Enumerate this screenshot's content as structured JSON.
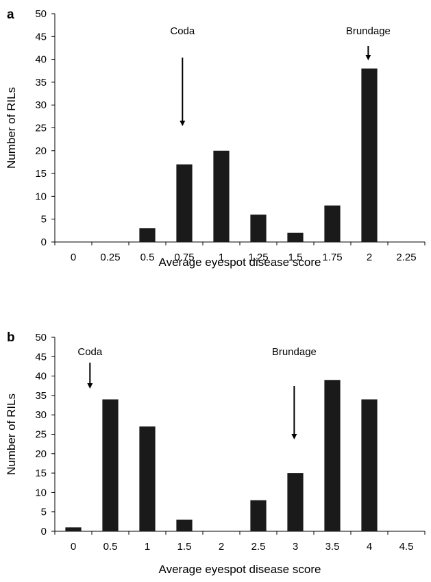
{
  "chart_data": [
    {
      "type": "bar",
      "panel_label": "a",
      "categories": [
        "0",
        "0.25",
        "0.5",
        "0.75",
        "1",
        "1.25",
        "1.5",
        "1.75",
        "2",
        "2.25"
      ],
      "values": [
        0,
        0,
        3,
        17,
        20,
        6,
        2,
        8,
        38,
        0
      ],
      "xlabel": "Average eyespot disease score",
      "ylabel": "Number of RILs",
      "ylim": [
        0,
        50
      ],
      "yticks": [
        0,
        5,
        10,
        15,
        20,
        25,
        30,
        35,
        40,
        45,
        50
      ],
      "grid": false,
      "bar_color": "#1a1a1a",
      "annotations": [
        {
          "text": "Coda",
          "x": 0.75
        },
        {
          "text": "Brundage",
          "x": 2
        }
      ]
    },
    {
      "type": "bar",
      "panel_label": "b",
      "categories": [
        "0",
        "0.5",
        "1",
        "1.5",
        "2",
        "2.5",
        "3",
        "3.5",
        "4",
        "4.5"
      ],
      "values": [
        1,
        34,
        27,
        3,
        0,
        8,
        15,
        39,
        34,
        0
      ],
      "xlabel": "Average eyespot disease score",
      "ylabel": "Number of RILs",
      "ylim": [
        0,
        50
      ],
      "yticks": [
        0,
        5,
        10,
        15,
        20,
        25,
        30,
        35,
        40,
        45,
        50
      ],
      "grid": false,
      "bar_color": "#1a1a1a",
      "annotations": [
        {
          "text": "Coda",
          "x": 0.5
        },
        {
          "text": "Brundage",
          "x": 3
        }
      ]
    }
  ]
}
